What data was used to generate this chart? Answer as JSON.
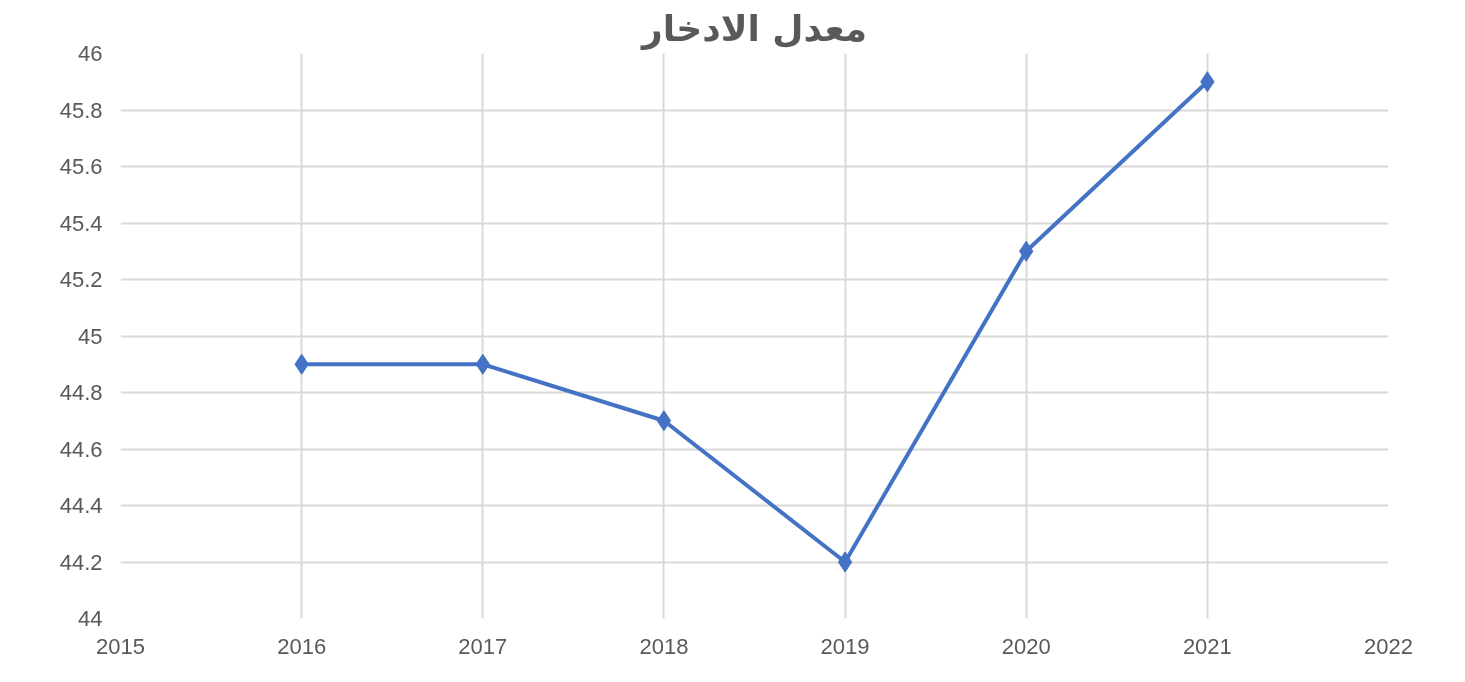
{
  "chart_data": {
    "type": "line",
    "title": "معدل الادخار",
    "x": [
      2016,
      2017,
      2018,
      2019,
      2020,
      2021
    ],
    "series": [
      {
        "color": "#4472c4",
        "values": [
          44.9,
          44.9,
          44.7,
          44.2,
          45.3,
          45.9
        ]
      }
    ],
    "xlim": [
      2015,
      2022
    ],
    "xticks": [
      2015,
      2016,
      2017,
      2018,
      2019,
      2020,
      2021,
      2022
    ],
    "ylim": [
      44,
      46
    ],
    "yticks": [
      44,
      44.2,
      44.4,
      44.6,
      44.8,
      45,
      45.2,
      45.4,
      45.6,
      45.8,
      46
    ],
    "grid": true,
    "marker": "diamond",
    "line_style": "solid"
  }
}
